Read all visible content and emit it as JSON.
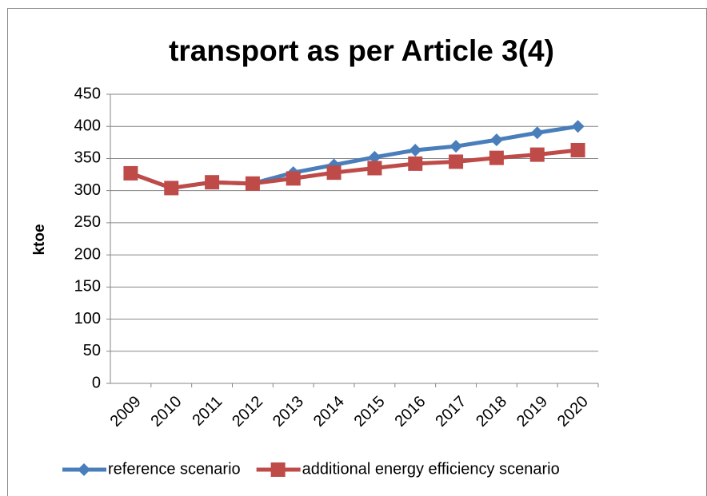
{
  "chart_data": {
    "type": "line",
    "title": "transport as per Article 3(4)",
    "y_label": "ktoe",
    "categories": [
      "2009",
      "2010",
      "2011",
      "2012",
      "2013",
      "2014",
      "2015",
      "2016",
      "2017",
      "2018",
      "2019",
      "2020"
    ],
    "series": [
      {
        "name": "reference scenario",
        "color": "#4a7ebb",
        "marker": "diamond",
        "values": [
          327,
          304,
          313,
          311,
          328,
          340,
          352,
          363,
          369,
          379,
          390,
          400
        ]
      },
      {
        "name": "additional energy efficiency scenario",
        "color": "#be4b48",
        "marker": "square",
        "values": [
          327,
          304,
          313,
          311,
          319,
          328,
          335,
          342,
          345,
          351,
          356,
          363
        ]
      }
    ],
    "ylim": [
      0,
      450
    ],
    "yticks": [
      0,
      50,
      100,
      150,
      200,
      250,
      300,
      350,
      400,
      450
    ],
    "grid": true,
    "legend": "bottom"
  }
}
